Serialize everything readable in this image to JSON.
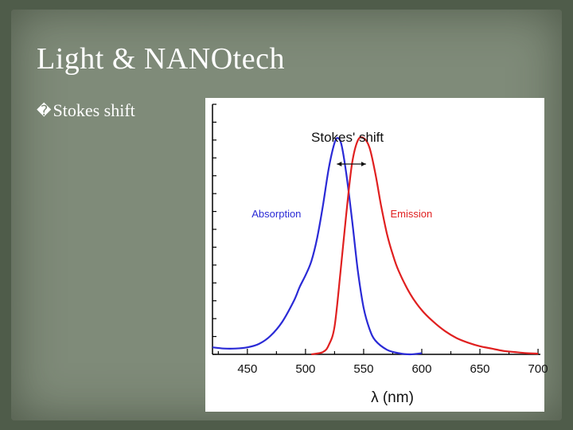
{
  "slide": {
    "title": "Light & NANOtech",
    "bullet_glyph": "�",
    "bullet_text": "Stokes shift"
  },
  "chart_data": {
    "type": "line",
    "title": "",
    "xlabel": "λ (nm)",
    "ylabel": "",
    "xlim": [
      420,
      702
    ],
    "ylim": [
      0,
      1.0
    ],
    "x_ticks": [
      450,
      500,
      550,
      600,
      650,
      700
    ],
    "grid": false,
    "annotation": {
      "text": "Stokes' shift",
      "arrow_from_x": 527,
      "arrow_to_x": 552
    },
    "series": [
      {
        "name": "Absorption",
        "color": "#2a2ad6",
        "points": [
          [
            420,
            0.03
          ],
          [
            430,
            0.025
          ],
          [
            440,
            0.025
          ],
          [
            450,
            0.03
          ],
          [
            460,
            0.045
          ],
          [
            470,
            0.08
          ],
          [
            480,
            0.14
          ],
          [
            490,
            0.23
          ],
          [
            495,
            0.29
          ],
          [
            500,
            0.34
          ],
          [
            505,
            0.4
          ],
          [
            510,
            0.5
          ],
          [
            515,
            0.64
          ],
          [
            520,
            0.8
          ],
          [
            525,
            0.91
          ],
          [
            528,
            0.93
          ],
          [
            531,
            0.9
          ],
          [
            535,
            0.78
          ],
          [
            540,
            0.58
          ],
          [
            545,
            0.36
          ],
          [
            550,
            0.2
          ],
          [
            555,
            0.11
          ],
          [
            560,
            0.06
          ],
          [
            570,
            0.02
          ],
          [
            580,
            0.005
          ],
          [
            590,
            0.0
          ],
          [
            600,
            0.005
          ]
        ]
      },
      {
        "name": "Emission",
        "color": "#e02020",
        "points": [
          [
            505,
            0.0
          ],
          [
            515,
            0.01
          ],
          [
            520,
            0.04
          ],
          [
            525,
            0.12
          ],
          [
            530,
            0.35
          ],
          [
            535,
            0.6
          ],
          [
            540,
            0.82
          ],
          [
            545,
            0.92
          ],
          [
            550,
            0.93
          ],
          [
            555,
            0.89
          ],
          [
            560,
            0.78
          ],
          [
            565,
            0.64
          ],
          [
            570,
            0.52
          ],
          [
            575,
            0.43
          ],
          [
            580,
            0.36
          ],
          [
            590,
            0.26
          ],
          [
            600,
            0.19
          ],
          [
            610,
            0.14
          ],
          [
            620,
            0.1
          ],
          [
            630,
            0.07
          ],
          [
            640,
            0.05
          ],
          [
            650,
            0.035
          ],
          [
            660,
            0.025
          ],
          [
            670,
            0.015
          ],
          [
            680,
            0.01
          ],
          [
            690,
            0.005
          ],
          [
            700,
            0.003
          ]
        ]
      }
    ]
  }
}
